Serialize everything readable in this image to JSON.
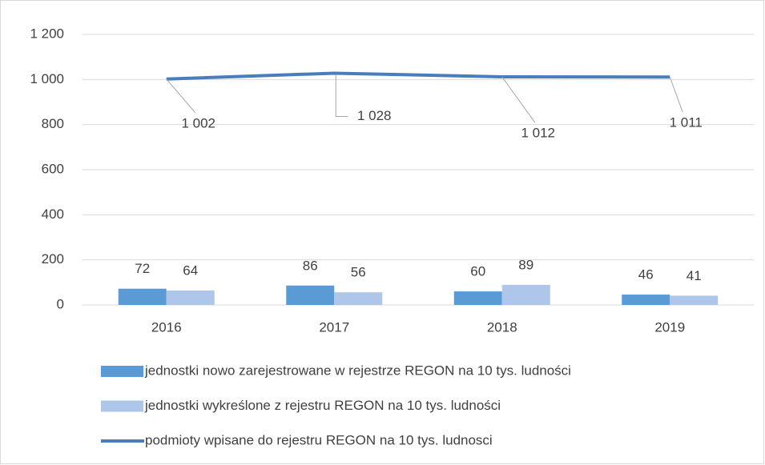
{
  "chart_data": {
    "type": "combo",
    "categories": [
      "2016",
      "2017",
      "2018",
      "2019"
    ],
    "series": [
      {
        "name": "jednostki nowo zarejestrowane w rejestrze REGON na 10 tys. ludności",
        "type": "bar",
        "color": "#5b9bd5",
        "values": [
          72,
          86,
          60,
          46
        ]
      },
      {
        "name": "jednostki wykreślone z rejestru REGON na 10 tys. ludności",
        "type": "bar",
        "color": "#aec6e9",
        "values": [
          64,
          56,
          89,
          41
        ]
      },
      {
        "name": "podmioty wpisane do rejestru REGON na 10 tys. ludnosci",
        "type": "line",
        "color": "#4a7ebb",
        "values": [
          1002,
          1028,
          1012,
          1011
        ],
        "value_labels": [
          "1 002",
          "1 028",
          "1 012",
          "1 011"
        ]
      }
    ],
    "ylim": [
      0,
      1200
    ],
    "yticks": [
      0,
      200,
      400,
      600,
      800,
      {
        "value": 1000,
        "label": "1 000"
      },
      {
        "value": 1200,
        "label": "1 200"
      }
    ],
    "grid": true,
    "legend": "bottom"
  }
}
